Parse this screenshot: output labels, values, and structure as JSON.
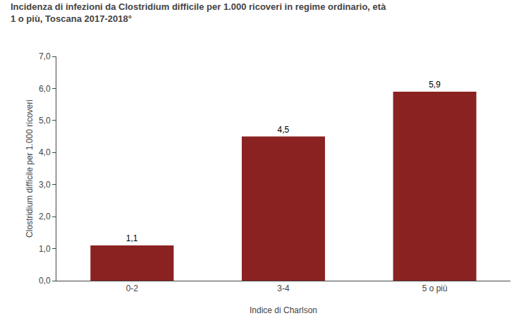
{
  "chart_data": {
    "type": "bar",
    "title": "Incidenza di infezioni da Clostridium difficile per 1.000 ricoveri in regime ordinario, età 1 o più, Toscana 2017-2018°",
    "xlabel": "Indice di Charlson",
    "ylabel": "Clostridium difficile per 1.000 ricoveri",
    "categories": [
      "0-2",
      "3-4",
      "5 o più"
    ],
    "values": [
      1.1,
      4.5,
      5.9
    ],
    "value_labels": [
      "1,1",
      "4,5",
      "5,9"
    ],
    "data_labels": true,
    "color": "#8B2222",
    "ylim": [
      0,
      7.0
    ],
    "yticks": [
      {
        "value": 0.0,
        "label": "0,0"
      },
      {
        "value": 1.0,
        "label": "1,0"
      },
      {
        "value": 2.0,
        "label": "2,0"
      },
      {
        "value": 3.0,
        "label": "3,0"
      },
      {
        "value": 4.0,
        "label": "4,0"
      },
      {
        "value": 5.0,
        "label": "5,0"
      },
      {
        "value": 6.0,
        "label": "6,0"
      },
      {
        "value": 7.0,
        "label": "7,0"
      }
    ],
    "grid": false
  }
}
